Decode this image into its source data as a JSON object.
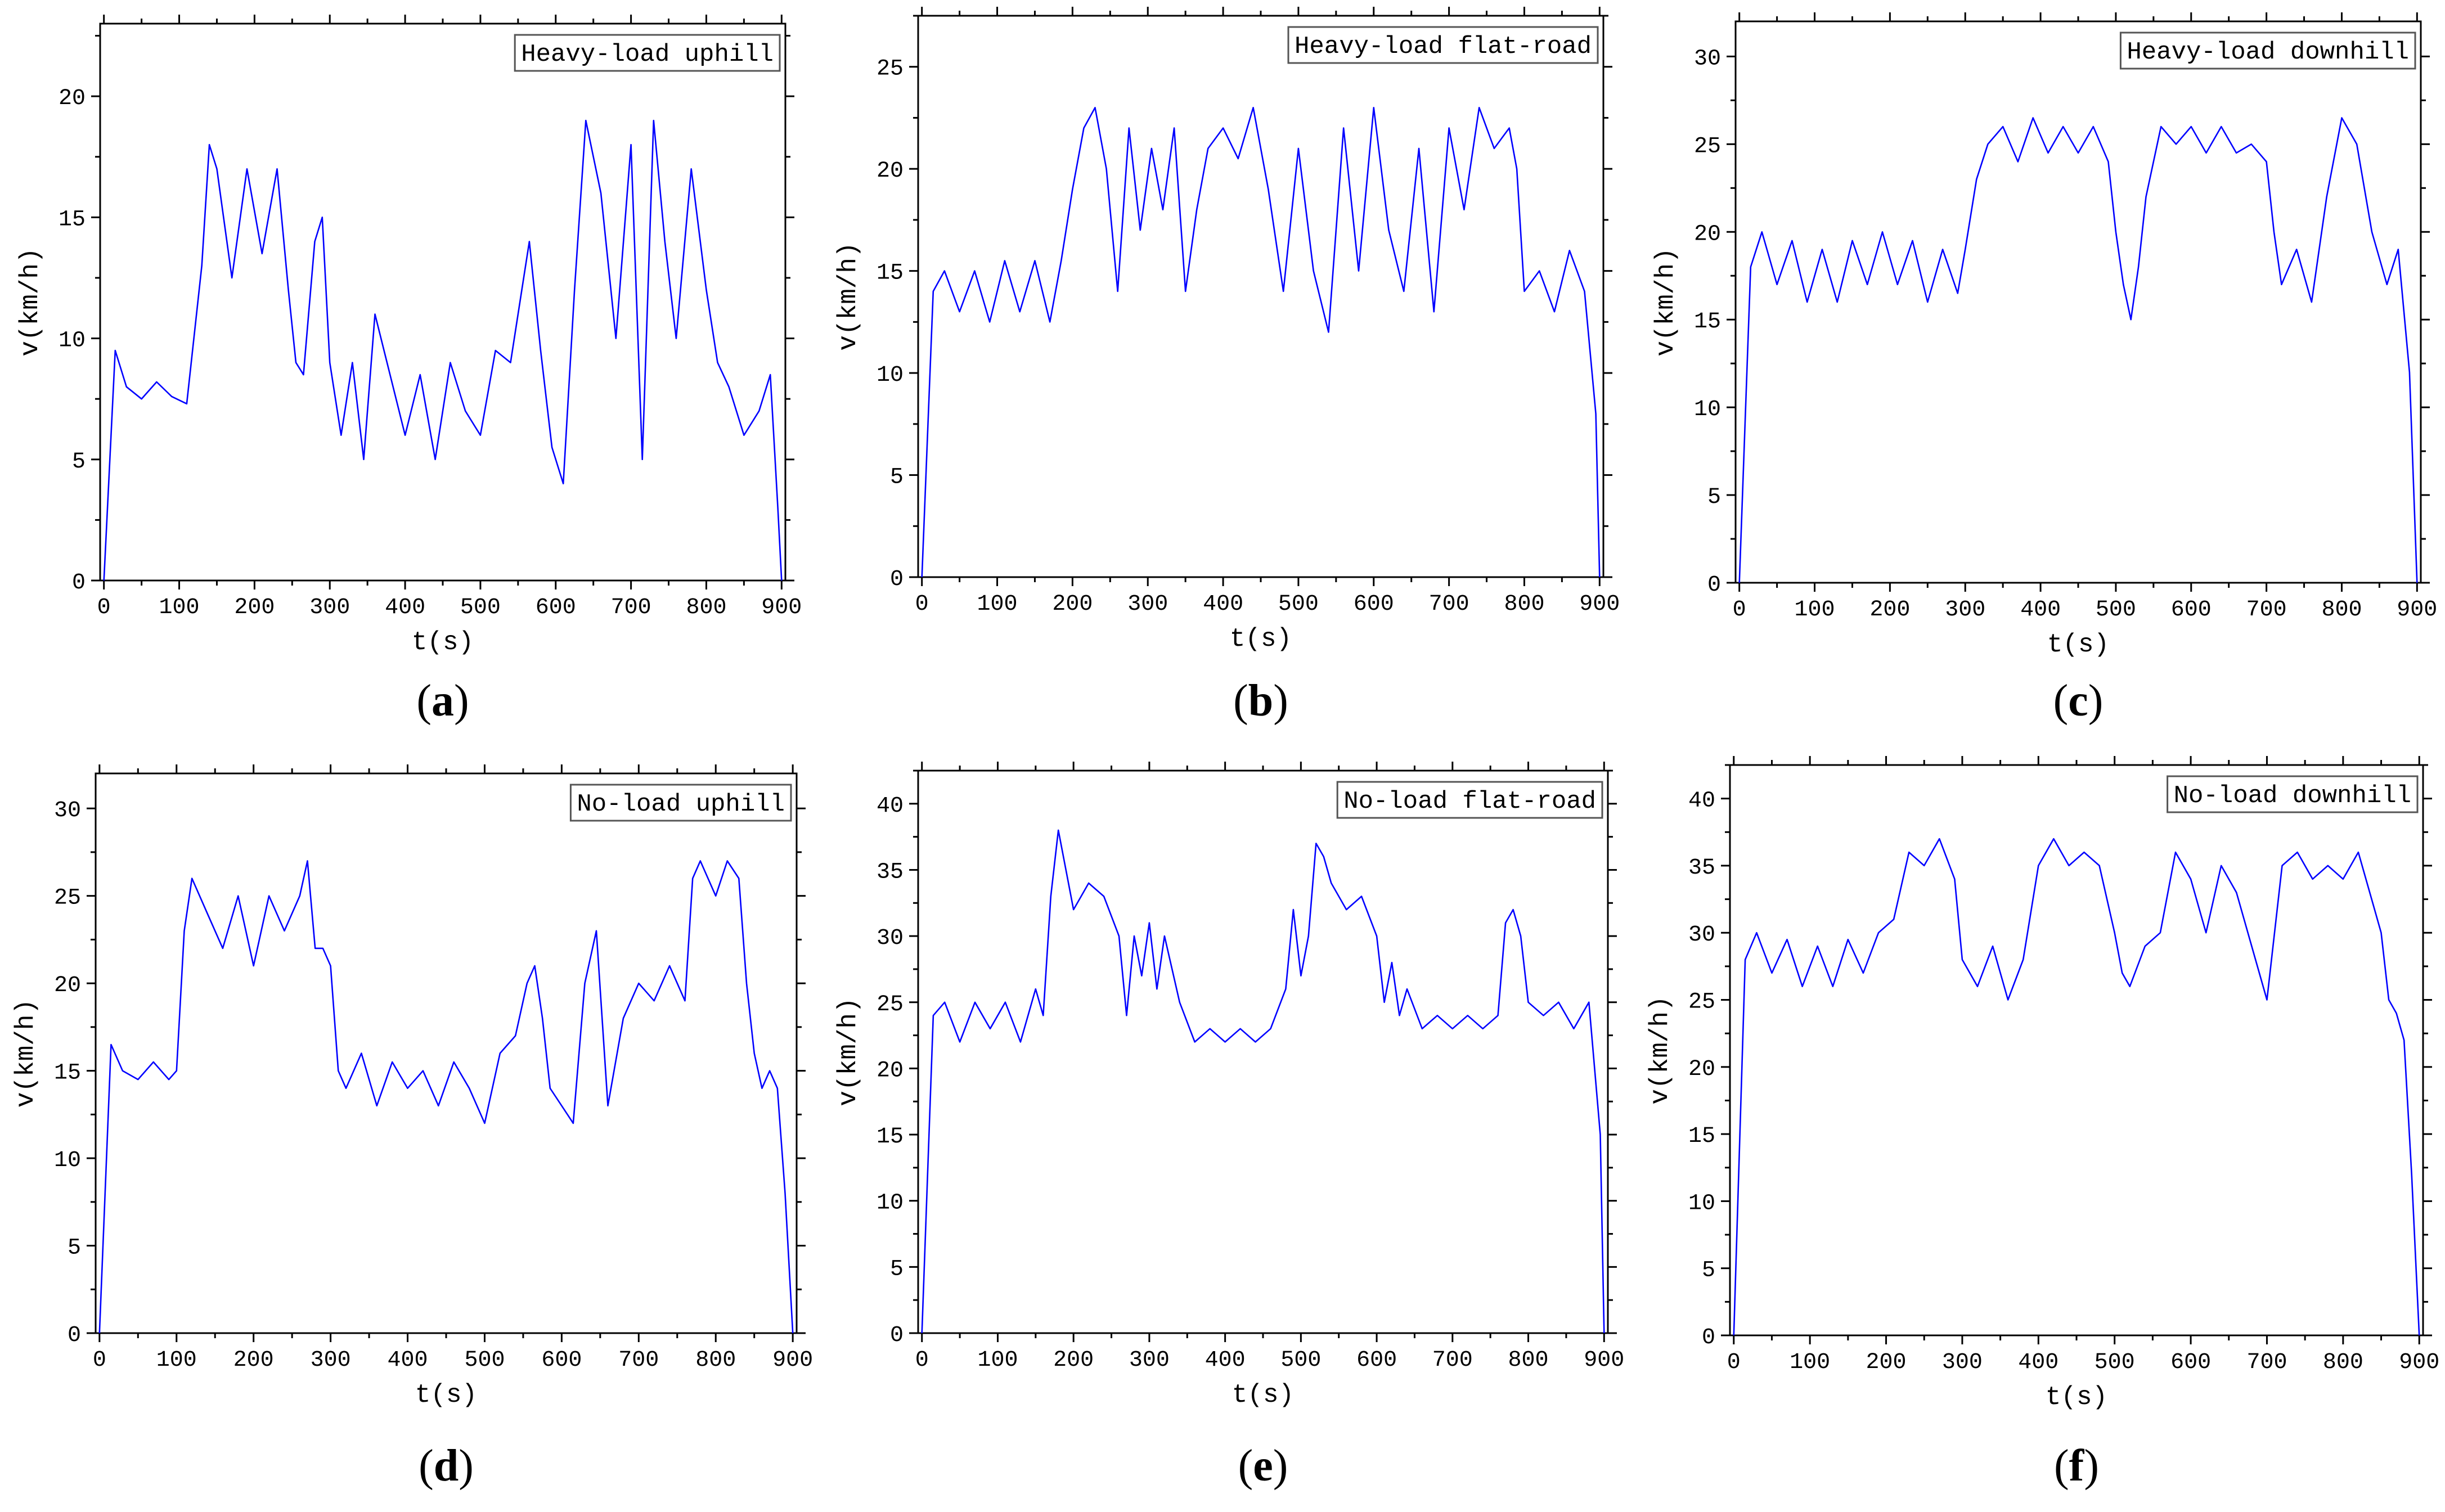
{
  "figure": {
    "line_color": "#0000ff",
    "axis_color": "#000000",
    "background": "#ffffff"
  },
  "chart_data": [
    {
      "id": "a",
      "panel_label": "a",
      "type": "line",
      "legend": "Heavy-load uphill",
      "xlabel": "t(s)",
      "ylabel": "v(km/h)",
      "xlim": [
        -5,
        905
      ],
      "ylim": [
        0,
        23
      ],
      "xticks": [
        0,
        100,
        200,
        300,
        400,
        500,
        600,
        700,
        800,
        900
      ],
      "yticks": [
        0,
        5,
        10,
        15,
        20
      ],
      "series": [
        {
          "name": "Heavy-load uphill",
          "x": [
            0,
            15,
            30,
            50,
            70,
            90,
            110,
            130,
            140,
            150,
            170,
            190,
            210,
            230,
            245,
            255,
            265,
            280,
            290,
            300,
            315,
            330,
            345,
            360,
            380,
            400,
            420,
            440,
            460,
            480,
            500,
            520,
            540,
            555,
            565,
            580,
            595,
            610,
            625,
            640,
            660,
            680,
            700,
            715,
            730,
            745,
            760,
            780,
            800,
            815,
            830,
            850,
            870,
            885,
            895,
            900
          ],
          "y": [
            0,
            9.5,
            8,
            7.5,
            8.2,
            7.6,
            7.3,
            13,
            18,
            17,
            12.5,
            17,
            13.5,
            17,
            12,
            9,
            8.5,
            14,
            15,
            9,
            6,
            9,
            5,
            11,
            8.5,
            6,
            8.5,
            5,
            9,
            7,
            6,
            9.5,
            9,
            12,
            14,
            9.5,
            5.5,
            4,
            12,
            19,
            16,
            10,
            18,
            5,
            19,
            14,
            10,
            17,
            12,
            9,
            8,
            6,
            7,
            8.5,
            3,
            0
          ]
        }
      ]
    },
    {
      "id": "b",
      "panel_label": "b",
      "type": "line",
      "legend": "Heavy-load flat-road",
      "xlabel": "t(s)",
      "ylabel": "v(km/h)",
      "xlim": [
        -5,
        905
      ],
      "ylim": [
        0,
        27.5
      ],
      "xticks": [
        0,
        100,
        200,
        300,
        400,
        500,
        600,
        700,
        800,
        900
      ],
      "yticks": [
        0,
        5,
        10,
        15,
        20,
        25
      ],
      "series": [
        {
          "name": "Heavy-load flat-road",
          "x": [
            0,
            15,
            30,
            50,
            70,
            90,
            110,
            130,
            150,
            170,
            185,
            200,
            215,
            230,
            245,
            260,
            275,
            290,
            305,
            320,
            335,
            350,
            365,
            380,
            400,
            420,
            440,
            460,
            480,
            500,
            520,
            540,
            560,
            580,
            600,
            620,
            640,
            660,
            680,
            700,
            720,
            740,
            760,
            780,
            790,
            800,
            820,
            840,
            860,
            880,
            895,
            900
          ],
          "y": [
            0,
            14,
            15,
            13,
            15,
            12.5,
            15.5,
            13,
            15.5,
            12.5,
            15.5,
            19,
            22,
            23,
            20,
            14,
            22,
            17,
            21,
            18,
            22,
            14,
            18,
            21,
            22,
            20.5,
            23,
            19,
            14,
            21,
            15,
            12,
            22,
            15,
            23,
            17,
            14,
            21,
            13,
            22,
            18,
            23,
            21,
            22,
            20,
            14,
            15,
            13,
            16,
            14,
            8,
            0
          ]
        }
      ]
    },
    {
      "id": "c",
      "panel_label": "c",
      "type": "line",
      "legend": "Heavy-load downhill",
      "xlabel": "t(s)",
      "ylabel": "v(km/h)",
      "xlim": [
        -5,
        905
      ],
      "ylim": [
        0,
        32
      ],
      "xticks": [
        0,
        100,
        200,
        300,
        400,
        500,
        600,
        700,
        800,
        900
      ],
      "yticks": [
        0,
        5,
        10,
        15,
        20,
        25,
        30
      ],
      "series": [
        {
          "name": "Heavy-load downhill",
          "x": [
            0,
            15,
            30,
            50,
            70,
            90,
            110,
            130,
            150,
            170,
            190,
            210,
            230,
            250,
            270,
            290,
            300,
            315,
            330,
            350,
            370,
            390,
            410,
            430,
            450,
            470,
            490,
            500,
            510,
            520,
            530,
            540,
            560,
            580,
            600,
            620,
            640,
            660,
            680,
            700,
            710,
            720,
            740,
            760,
            780,
            800,
            820,
            840,
            860,
            875,
            890,
            900
          ],
          "y": [
            0,
            18,
            20,
            17,
            19.5,
            16,
            19,
            16,
            19.5,
            17,
            20,
            17,
            19.5,
            16,
            19,
            16.5,
            19,
            23,
            25,
            26,
            24,
            26.5,
            24.5,
            26,
            24.5,
            26,
            24,
            20,
            17,
            15,
            18,
            22,
            26,
            25,
            26,
            24.5,
            26,
            24.5,
            25,
            24,
            20,
            17,
            19,
            16,
            22,
            26.5,
            25,
            20,
            17,
            19,
            12,
            0
          ]
        }
      ]
    },
    {
      "id": "d",
      "panel_label": "d",
      "type": "line",
      "legend": "No-load uphill",
      "xlabel": "t(s)",
      "ylabel": "v(km/h)",
      "xlim": [
        -5,
        905
      ],
      "ylim": [
        0,
        32
      ],
      "xticks": [
        0,
        100,
        200,
        300,
        400,
        500,
        600,
        700,
        800,
        900
      ],
      "yticks": [
        0,
        5,
        10,
        15,
        20,
        25,
        30
      ],
      "series": [
        {
          "name": "No-load uphill",
          "x": [
            0,
            15,
            30,
            50,
            70,
            90,
            100,
            110,
            120,
            140,
            160,
            180,
            200,
            220,
            240,
            260,
            270,
            280,
            290,
            300,
            310,
            320,
            340,
            360,
            380,
            400,
            420,
            440,
            460,
            480,
            500,
            520,
            540,
            555,
            565,
            575,
            585,
            600,
            615,
            630,
            645,
            660,
            680,
            700,
            720,
            740,
            760,
            770,
            780,
            800,
            815,
            830,
            840,
            850,
            860,
            870,
            880,
            890,
            900
          ],
          "y": [
            0,
            16.5,
            15,
            14.5,
            15.5,
            14.5,
            15,
            23,
            26,
            24,
            22,
            25,
            21,
            25,
            23,
            25,
            27,
            22,
            22,
            21,
            15,
            14,
            16,
            13,
            15.5,
            14,
            15,
            13,
            15.5,
            14,
            12,
            16,
            17,
            20,
            21,
            18,
            14,
            13,
            12,
            20,
            23,
            13,
            18,
            20,
            19,
            21,
            19,
            26,
            27,
            25,
            27,
            26,
            20,
            16,
            14,
            15,
            14,
            8,
            0
          ]
        }
      ]
    },
    {
      "id": "e",
      "panel_label": "e",
      "type": "line",
      "legend": "No-load flat-road",
      "xlabel": "t(s)",
      "ylabel": "v(km/h)",
      "xlim": [
        -5,
        905
      ],
      "ylim": [
        0,
        42.5
      ],
      "xticks": [
        0,
        100,
        200,
        300,
        400,
        500,
        600,
        700,
        800,
        900
      ],
      "yticks": [
        0,
        5,
        10,
        15,
        20,
        25,
        30,
        35,
        40
      ],
      "series": [
        {
          "name": "No-load flat-road",
          "x": [
            0,
            15,
            30,
            50,
            70,
            90,
            110,
            130,
            150,
            160,
            170,
            180,
            190,
            200,
            210,
            220,
            240,
            260,
            270,
            280,
            290,
            300,
            310,
            320,
            340,
            360,
            380,
            400,
            420,
            440,
            460,
            480,
            490,
            500,
            510,
            520,
            530,
            540,
            560,
            580,
            600,
            610,
            620,
            630,
            640,
            660,
            680,
            700,
            720,
            740,
            760,
            770,
            780,
            790,
            800,
            820,
            840,
            860,
            880,
            895,
            900
          ],
          "y": [
            0,
            24,
            25,
            22,
            25,
            23,
            25,
            22,
            26,
            24,
            33,
            38,
            35,
            32,
            33,
            34,
            33,
            30,
            24,
            30,
            27,
            31,
            26,
            30,
            25,
            22,
            23,
            22,
            23,
            22,
            23,
            26,
            32,
            27,
            30,
            37,
            36,
            34,
            32,
            33,
            30,
            25,
            28,
            24,
            26,
            23,
            24,
            23,
            24,
            23,
            24,
            31,
            32,
            30,
            25,
            24,
            25,
            23,
            25,
            15,
            0
          ]
        }
      ]
    },
    {
      "id": "f",
      "panel_label": "f",
      "type": "line",
      "legend": "No-load downhill",
      "xlabel": "t(s)",
      "ylabel": "v(km/h)",
      "xlim": [
        -5,
        905
      ],
      "ylim": [
        0,
        42.5
      ],
      "xticks": [
        0,
        100,
        200,
        300,
        400,
        500,
        600,
        700,
        800,
        900
      ],
      "yticks": [
        0,
        5,
        10,
        15,
        20,
        25,
        30,
        35,
        40
      ],
      "series": [
        {
          "name": "No-load downhill",
          "x": [
            0,
            15,
            30,
            50,
            70,
            90,
            110,
            130,
            150,
            170,
            190,
            210,
            230,
            250,
            270,
            290,
            300,
            320,
            340,
            360,
            380,
            400,
            420,
            440,
            460,
            480,
            500,
            510,
            520,
            540,
            560,
            580,
            600,
            620,
            640,
            660,
            680,
            700,
            720,
            740,
            760,
            780,
            800,
            820,
            840,
            850,
            860,
            870,
            880,
            890,
            900
          ],
          "y": [
            0,
            28,
            30,
            27,
            29.5,
            26,
            29,
            26,
            29.5,
            27,
            30,
            31,
            36,
            35,
            37,
            34,
            28,
            26,
            29,
            25,
            28,
            35,
            37,
            35,
            36,
            35,
            30,
            27,
            26,
            29,
            30,
            36,
            34,
            30,
            35,
            33,
            29,
            25,
            35,
            36,
            34,
            35,
            34,
            36,
            32,
            30,
            25,
            24,
            22,
            12,
            0
          ]
        }
      ]
    }
  ]
}
